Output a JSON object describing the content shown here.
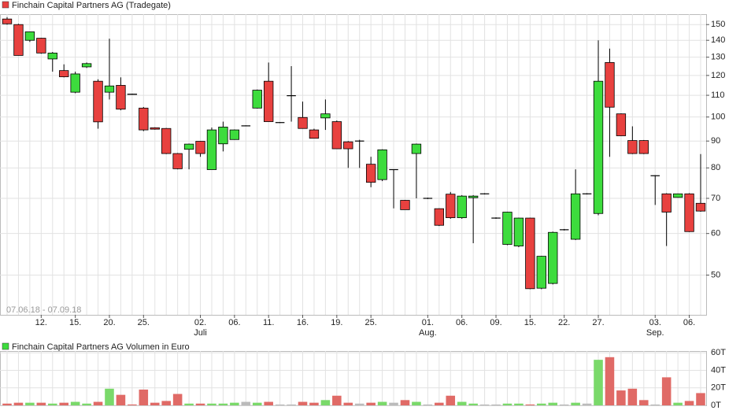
{
  "chart_data": [
    {
      "type": "candlestick",
      "title": "Finchain Capital Partners AG (Tradegate)",
      "date_range": "07.06.18 - 07.09.18",
      "categories": [
        null,
        null,
        null,
        "12.",
        null,
        null,
        "15.",
        null,
        null,
        "20.",
        null,
        null,
        "25.",
        null,
        null,
        null,
        null,
        "02.",
        null,
        null,
        "06.",
        null,
        null,
        "11.",
        null,
        null,
        "16.",
        null,
        null,
        "19.",
        null,
        null,
        "25.",
        null,
        null,
        null,
        null,
        "01.",
        null,
        null,
        "06.",
        null,
        null,
        "09.",
        null,
        null,
        "15.",
        null,
        null,
        "22.",
        null,
        null,
        "27.",
        null,
        null,
        null,
        null,
        "03.",
        null,
        null,
        "06.",
        null
      ],
      "months": [
        "Juli",
        "Aug.",
        "Sep."
      ],
      "open": [
        153.7,
        150,
        140,
        141.3,
        129,
        122.6,
        111.5,
        124.6,
        117,
        111.5,
        114.9,
        110.6,
        104,
        95.4,
        95.1,
        85.2,
        86.8,
        89.9,
        79.4,
        88.9,
        90.6,
        96.2,
        104,
        117,
        97.6,
        109.8,
        99.8,
        94.5,
        99.6,
        98,
        89.7,
        90,
        81.3,
        76,
        79.4,
        69.4,
        85.2,
        70,
        66.9,
        71.3,
        64.3,
        70.2,
        71.4,
        64.2,
        57.2,
        56.8,
        64.2,
        47.2,
        48.2,
        61,
        58.5,
        71.4,
        65.5,
        127,
        101.4,
        90.2,
        90.2,
        77.3,
        71.4,
        70.3,
        71.4,
        68.5
      ],
      "high": [
        155,
        150.5,
        145.3,
        141.5,
        133,
        126,
        122,
        127,
        118,
        141,
        119,
        110.8,
        104.5,
        95.6,
        95.3,
        85.4,
        89,
        90,
        95.5,
        98,
        94.7,
        96.4,
        112.8,
        127,
        97.8,
        125,
        107,
        95,
        108,
        98.5,
        90,
        90.5,
        84,
        86.8,
        79.5,
        69.5,
        89,
        70.2,
        67,
        72,
        71,
        71,
        71.6,
        64.4,
        66,
        64.3,
        64.3,
        54.4,
        60.5,
        61.2,
        79.5,
        71.6,
        140,
        135,
        101.6,
        96,
        90.4,
        77.5,
        71.6,
        71.5,
        71.6,
        85
      ],
      "low": [
        150,
        131,
        139,
        132,
        122,
        119,
        111,
        124,
        95,
        108,
        103,
        110.2,
        94,
        94.6,
        85,
        79.5,
        79.5,
        84,
        79.4,
        86,
        90.5,
        96,
        103.8,
        98,
        97.4,
        98,
        95,
        91,
        94.5,
        87,
        80,
        80,
        73.5,
        75.5,
        67,
        66.6,
        70,
        69.8,
        62,
        64,
        64,
        57.5,
        71.2,
        64,
        57,
        56.5,
        47,
        47,
        48,
        60.8,
        58.3,
        71.2,
        65,
        84,
        92,
        85,
        85,
        68,
        56.8,
        70.2,
        60.4,
        66
      ],
      "close": [
        150.5,
        131,
        145.3,
        132.4,
        132.4,
        119.3,
        120.8,
        126.4,
        97.9,
        114.6,
        103.5,
        110.4,
        94.5,
        94.8,
        85.2,
        79.7,
        88.8,
        85.2,
        94.5,
        95.7,
        94.5,
        96.2,
        112.5,
        98,
        97.6,
        109.8,
        95.1,
        91.1,
        101.4,
        87,
        87,
        90,
        75.1,
        86.6,
        79.4,
        66.6,
        88.8,
        70,
        62.2,
        64.3,
        70.7,
        70.7,
        71.4,
        64.2,
        65.9,
        64.2,
        47.1,
        54.3,
        60.3,
        61,
        71.4,
        71.4,
        117,
        104.4,
        92.1,
        85.2,
        85.2,
        77.3,
        65.9,
        71.4,
        60.5,
        66.2
      ],
      "up_color": "#3ddc3d",
      "down_color": "#e8413f",
      "flat_color": "#000000",
      "log_scale": true,
      "ylim": [
        42,
        157
      ],
      "yticks": [
        50,
        60,
        70,
        80,
        90,
        100,
        110,
        120,
        130,
        140,
        150
      ],
      "grid": true
    },
    {
      "type": "bar",
      "title": "Finchain Capital Partners AG Volumen in Euro",
      "values": [
        2,
        3,
        3,
        3,
        2,
        3,
        4,
        2,
        4,
        19,
        12,
        1,
        18,
        3,
        5,
        13,
        2,
        2,
        2,
        2,
        3,
        4,
        3,
        4,
        1,
        1,
        4,
        3,
        6,
        11,
        3,
        2,
        3,
        4,
        3,
        6,
        4,
        1,
        3,
        11,
        4,
        2,
        1,
        1,
        2,
        2,
        1,
        2,
        3,
        1,
        3,
        2,
        52,
        55,
        17,
        19,
        6,
        1,
        32,
        3,
        5,
        14
      ],
      "up_color": "#7ad96a",
      "down_color": "#e06a66",
      "flat_color": "#bbbbbb",
      "ylim": [
        0,
        62
      ],
      "yticks": [
        {
          "value": 0,
          "label": "0T"
        },
        {
          "value": 20,
          "label": "20T"
        },
        {
          "value": 40,
          "label": "40T"
        },
        {
          "value": 60,
          "label": "60T"
        }
      ],
      "grid": true
    }
  ]
}
